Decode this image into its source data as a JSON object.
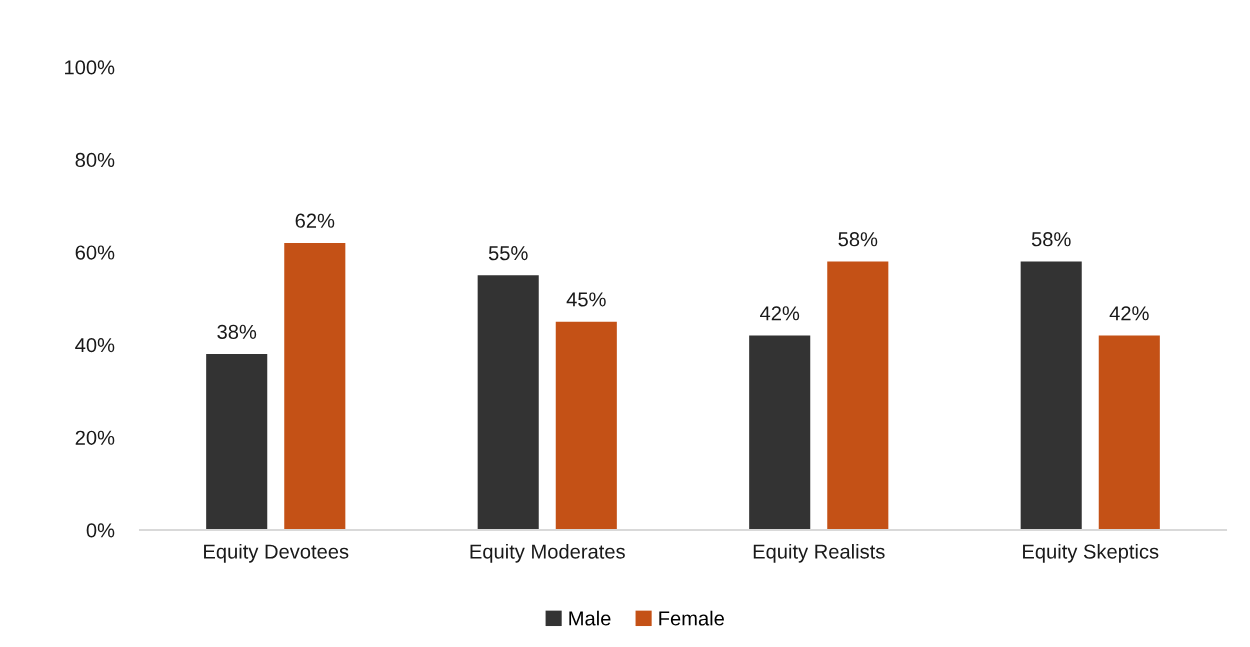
{
  "chart_data": {
    "type": "bar",
    "categories": [
      "Equity Devotees",
      "Equity Moderates",
      "Equity Realists",
      "Equity Skeptics"
    ],
    "series": [
      {
        "name": "Male",
        "color": "#333333",
        "values": [
          38,
          55,
          42,
          58
        ],
        "value_labels": [
          "38%",
          "55%",
          "42%",
          "58%"
        ]
      },
      {
        "name": "Female",
        "color": "#c45116",
        "values": [
          62,
          45,
          58,
          42
        ],
        "value_labels": [
          "62%",
          "45%",
          "58%",
          "42%"
        ]
      }
    ],
    "ylim": [
      0,
      100
    ],
    "yticks": [
      {
        "value": 0,
        "label": "0%"
      },
      {
        "value": 20,
        "label": "20%"
      },
      {
        "value": 40,
        "label": "40%"
      },
      {
        "value": 60,
        "label": "60%"
      },
      {
        "value": 80,
        "label": "80%"
      },
      {
        "value": 100,
        "label": "100%"
      }
    ],
    "grid": false,
    "legend": "bottom"
  }
}
